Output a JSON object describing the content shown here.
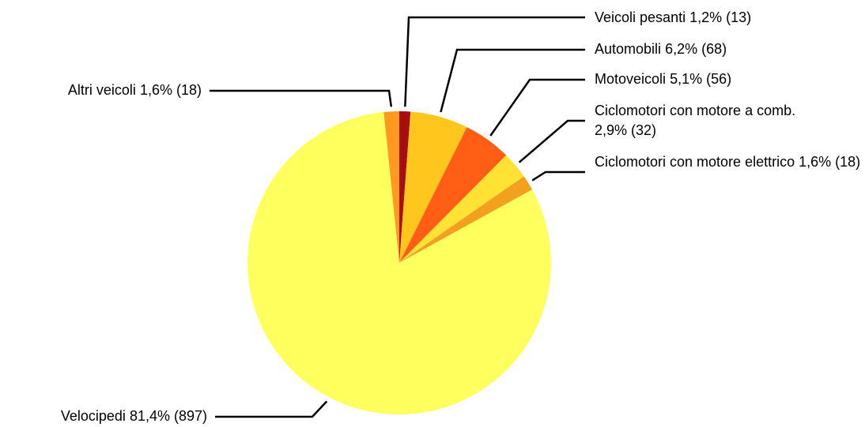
{
  "chart_data": {
    "type": "pie",
    "categories": [
      "Veicoli pesanti",
      "Automobili",
      "Motoveicoli",
      "Ciclomotori con motore a comb.",
      "Ciclomotori con motore elettrico",
      "Velocipedi",
      "Altri veicoli"
    ],
    "values": [
      13,
      68,
      56,
      32,
      18,
      897,
      18
    ],
    "value_labels": [
      "1,2% (13)",
      "6,2% (68)",
      "5,1% (56)",
      "2,9% (32)",
      "1,6% (18)",
      "81,4% (897)",
      "1,6% (18)"
    ],
    "colors": [
      "#a50f0f",
      "#ffc61e",
      "#ff5e14",
      "#ffe234",
      "#f2a01e",
      "#ffff5e",
      "#ff9a1e"
    ]
  }
}
